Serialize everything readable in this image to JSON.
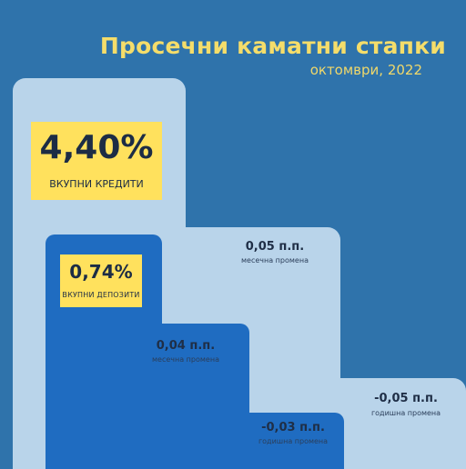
{
  "header": {
    "title": "Просечни каматни стапки",
    "subtitle": "октомври, 2022"
  },
  "credits": {
    "value": "4,40%",
    "label": "вкупни кредити",
    "monthly_change": "0,05 п.п.",
    "monthly_change_label": "месечна промена",
    "annual_change": "-0,05 п.п.",
    "annual_change_label": "годишна промена"
  },
  "deposits": {
    "value": "0,74%",
    "label": "вкупни депозити",
    "monthly_change": "0,04 п.п.",
    "monthly_change_label": "месечна промена",
    "annual_change": "-0,03 п.п.",
    "annual_change_label": "годишна промена"
  },
  "colors": {
    "background": "#2f73ab",
    "pale_step": "#b9d4ea",
    "blue_step": "#1f6cc1",
    "highlight": "#ffe15d",
    "title": "#f5dd6a"
  }
}
